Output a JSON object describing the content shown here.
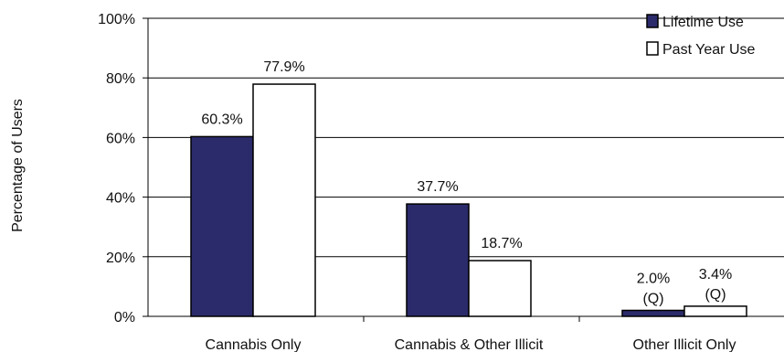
{
  "chart_data": {
    "type": "bar",
    "title": "",
    "xlabel": "",
    "ylabel": "Percentage of Users",
    "ylim": [
      0,
      100
    ],
    "yticks": [
      "0%",
      "20%",
      "40%",
      "60%",
      "80%",
      "100%"
    ],
    "grid": true,
    "legend_position": "top-right",
    "categories": [
      "Cannabis Only",
      "Cannabis & Other Illicit",
      "Other Illicit Only"
    ],
    "series": [
      {
        "name": "Lifetime Use",
        "color": "#2b2b6b",
        "values": [
          60.3,
          37.7,
          2.0
        ],
        "labels": [
          "60.3%",
          "37.7%",
          "2.0%"
        ],
        "notes": [
          "",
          "",
          "(Q)"
        ]
      },
      {
        "name": "Past Year Use",
        "color": "#ffffff",
        "values": [
          77.9,
          18.7,
          3.4
        ],
        "labels": [
          "77.9%",
          "18.7%",
          "3.4%"
        ],
        "notes": [
          "",
          "",
          "(Q)"
        ]
      }
    ]
  }
}
